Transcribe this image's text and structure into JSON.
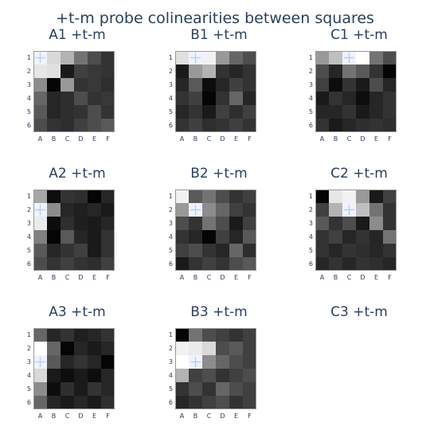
{
  "title": "+t-m probe colinearities between squares",
  "chart_data": {
    "type": "heatmap",
    "grid": "3x3",
    "colorscale": "grayscale (0 = black, 1 = white)",
    "row_labels": [
      "1",
      "2",
      "3",
      "4",
      "5",
      "6"
    ],
    "col_labels": [
      "A",
      "B",
      "C",
      "D",
      "E",
      "F"
    ],
    "panels": [
      {
        "title": "A1 +t-m",
        "marker": [
          0,
          0
        ],
        "z": [
          [
            1.0,
            0.85,
            0.7,
            0.45,
            0.3,
            0.2
          ],
          [
            0.9,
            0.88,
            0.1,
            0.25,
            0.22,
            0.2
          ],
          [
            0.55,
            0.02,
            0.6,
            0.2,
            0.22,
            0.18
          ],
          [
            0.4,
            0.15,
            0.18,
            0.3,
            0.2,
            0.22
          ],
          [
            0.35,
            0.15,
            0.18,
            0.2,
            0.3,
            0.2
          ],
          [
            0.3,
            0.2,
            0.18,
            0.25,
            0.3,
            0.35
          ]
        ]
      },
      {
        "title": "B1 +t-m",
        "marker": [
          0,
          1
        ],
        "z": [
          [
            0.88,
            1.0,
            0.95,
            0.6,
            0.4,
            0.3
          ],
          [
            0.1,
            0.6,
            0.7,
            0.2,
            0.15,
            0.2
          ],
          [
            0.15,
            0.35,
            0.05,
            0.15,
            0.25,
            0.2
          ],
          [
            0.2,
            0.25,
            0.02,
            0.2,
            0.4,
            0.15
          ],
          [
            0.15,
            0.2,
            0.1,
            0.25,
            0.18,
            0.25
          ],
          [
            0.2,
            0.25,
            0.18,
            0.2,
            0.25,
            0.2
          ]
        ]
      },
      {
        "title": "C1 +t-m",
        "marker": [
          0,
          2
        ],
        "z": [
          [
            0.6,
            0.75,
            1.0,
            1.0,
            0.45,
            0.3
          ],
          [
            0.3,
            0.15,
            0.45,
            0.35,
            0.2,
            0.02
          ],
          [
            0.25,
            0.05,
            0.2,
            0.1,
            0.3,
            0.15
          ],
          [
            0.1,
            0.2,
            0.15,
            0.05,
            0.15,
            0.2
          ],
          [
            0.15,
            0.15,
            0.2,
            0.1,
            0.15,
            0.2
          ],
          [
            0.2,
            0.1,
            0.15,
            0.18,
            0.2,
            0.18
          ]
        ]
      },
      {
        "title": "A2 +t-m",
        "marker": [
          1,
          0
        ],
        "z": [
          [
            0.65,
            0.05,
            0.2,
            0.18,
            0.02,
            0.15
          ],
          [
            1.0,
            0.55,
            0.15,
            0.12,
            0.15,
            0.1
          ],
          [
            0.92,
            0.05,
            0.18,
            0.12,
            0.1,
            0.15
          ],
          [
            0.5,
            0.02,
            0.35,
            0.15,
            0.1,
            0.2
          ],
          [
            0.35,
            0.15,
            0.2,
            0.25,
            0.1,
            0.2
          ],
          [
            0.3,
            0.2,
            0.25,
            0.2,
            0.18,
            0.25
          ]
        ]
      },
      {
        "title": "B2 +t-m",
        "marker": [
          1,
          1
        ],
        "z": [
          [
            0.95,
            0.35,
            0.45,
            0.3,
            0.2,
            0.25
          ],
          [
            0.6,
            1.0,
            0.55,
            0.4,
            0.25,
            0.2
          ],
          [
            0.3,
            0.2,
            0.45,
            0.3,
            0.1,
            0.25
          ],
          [
            0.2,
            0.15,
            0.02,
            0.25,
            0.15,
            0.35
          ],
          [
            0.25,
            0.3,
            0.2,
            0.15,
            0.4,
            0.18
          ],
          [
            0.1,
            0.2,
            0.25,
            0.2,
            0.3,
            0.35
          ]
        ]
      },
      {
        "title": "C2 +t-m",
        "marker": [
          1,
          2
        ],
        "z": [
          [
            0.02,
            0.9,
            0.95,
            0.6,
            0.1,
            0.25
          ],
          [
            0.25,
            0.7,
            1.0,
            0.75,
            0.45,
            0.2
          ],
          [
            0.35,
            0.2,
            0.3,
            0.1,
            0.55,
            0.2
          ],
          [
            0.2,
            0.25,
            0.15,
            0.2,
            0.15,
            0.45
          ],
          [
            0.2,
            0.15,
            0.2,
            0.18,
            0.15,
            0.2
          ],
          [
            0.15,
            0.2,
            0.15,
            0.2,
            0.18,
            0.15
          ]
        ]
      },
      {
        "title": "A3 +t-m",
        "marker": [
          2,
          0
        ],
        "z": [
          [
            0.4,
            0.15,
            0.2,
            0.12,
            0.15,
            0.2
          ],
          [
            1.0,
            0.4,
            0.02,
            0.15,
            0.1,
            0.15
          ],
          [
            1.0,
            0.35,
            0.15,
            0.2,
            0.15,
            0.02
          ],
          [
            0.85,
            0.1,
            0.05,
            0.1,
            0.05,
            0.15
          ],
          [
            0.55,
            0.05,
            0.18,
            0.1,
            0.2,
            0.15
          ],
          [
            0.4,
            0.15,
            0.1,
            0.15,
            0.1,
            0.18
          ]
        ]
      },
      {
        "title": "B3 +t-m",
        "marker": [
          2,
          1
        ],
        "z": [
          [
            0.02,
            0.45,
            0.3,
            0.25,
            0.2,
            0.25
          ],
          [
            0.95,
            0.92,
            0.85,
            0.3,
            0.35,
            0.25
          ],
          [
            1.0,
            0.35,
            0.55,
            0.4,
            0.3,
            0.25
          ],
          [
            0.7,
            0.25,
            0.3,
            0.2,
            0.25,
            0.3
          ],
          [
            0.2,
            0.3,
            0.2,
            0.4,
            0.3,
            0.25
          ],
          [
            0.15,
            0.2,
            0.25,
            0.3,
            0.2,
            0.25
          ]
        ]
      },
      {
        "title": "C3 +t-m",
        "marker": null,
        "z": null
      }
    ]
  }
}
